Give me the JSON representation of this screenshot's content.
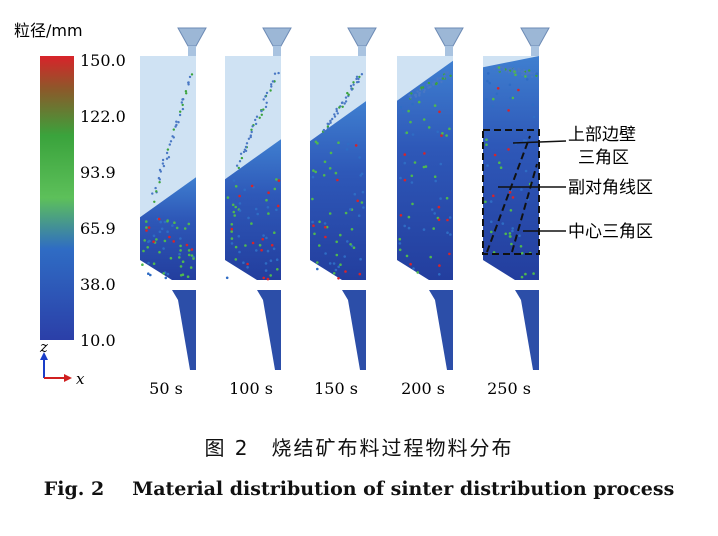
{
  "legend": {
    "title": "粒径/mm",
    "ticks": [
      "150.0",
      "122.0",
      "93.9",
      "65.9",
      "38.0",
      "10.0"
    ],
    "colors": [
      "#d8232a",
      "#3aa33c",
      "#5dc05a",
      "#2f6cc4",
      "#2b3fa8"
    ]
  },
  "axes": {
    "z": "z",
    "x": "x"
  },
  "panels": [
    {
      "time": "50 s",
      "fill": 0.28
    },
    {
      "time": "100 s",
      "fill": 0.45
    },
    {
      "time": "150 s",
      "fill": 0.62
    },
    {
      "time": "200 s",
      "fill": 0.8
    },
    {
      "time": "250 s",
      "fill": 0.95
    }
  ],
  "annotations": {
    "upper_wall_line1": "上部边壁",
    "upper_wall_line2": "三角区",
    "sub_diagonal": "副对角线区",
    "center_triangle": "中心三角区"
  },
  "caption": {
    "cn_num": "图 2",
    "cn_text": "烧结矿布料过程物料分布",
    "en_num": "Fig. 2",
    "en_text": "Material distribution of sinter distribution process"
  }
}
